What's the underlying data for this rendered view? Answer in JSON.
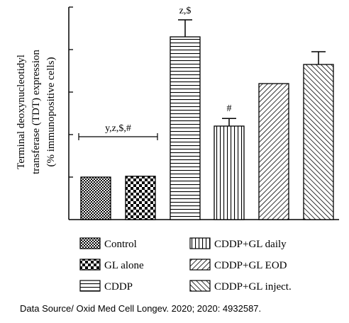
{
  "chart_data": {
    "type": "bar",
    "ylabel_lines": [
      "Terminal deoxynucleotidyl",
      "transferase (TDT) expression",
      "(% immunopositive cells)"
    ],
    "ylim": [
      0,
      5
    ],
    "yticks": [
      1,
      2,
      3,
      4,
      5
    ],
    "ytick_labels_shown": false,
    "categories": [
      "Control",
      "GL alone",
      "CDDP",
      "CDDP+GL daily",
      "CDDP+GL EOD",
      "CDDP+GL inject."
    ],
    "values": [
      1.0,
      1.02,
      4.3,
      2.2,
      3.2,
      3.65
    ],
    "errors": [
      0.0,
      0.0,
      0.4,
      0.18,
      0.0,
      0.3
    ],
    "patterns": [
      "dense-checker",
      "checker",
      "horizontal",
      "vertical",
      "diagonal-forward",
      "diagonal-back"
    ],
    "annotations": [
      {
        "text": "y,z,$,#",
        "group": [
          0,
          1
        ],
        "y": 1.95
      },
      {
        "text": "z,$",
        "bar": 2,
        "y": 4.85
      },
      {
        "text": "#",
        "bar": 3,
        "y": 2.55
      }
    ],
    "legend": [
      {
        "label": "Control",
        "pattern": "dense-checker"
      },
      {
        "label": "CDDP+GL daily",
        "pattern": "vertical"
      },
      {
        "label": "GL alone",
        "pattern": "checker"
      },
      {
        "label": "CDDP+GL EOD",
        "pattern": "diagonal-forward"
      },
      {
        "label": "CDDP",
        "pattern": "horizontal"
      },
      {
        "label": "CDDP+GL inject.",
        "pattern": "diagonal-back"
      }
    ],
    "legend_position": "bottom"
  },
  "source": "Data Source/ Oxid Med Cell Longev. 2020; 2020: 4932587."
}
